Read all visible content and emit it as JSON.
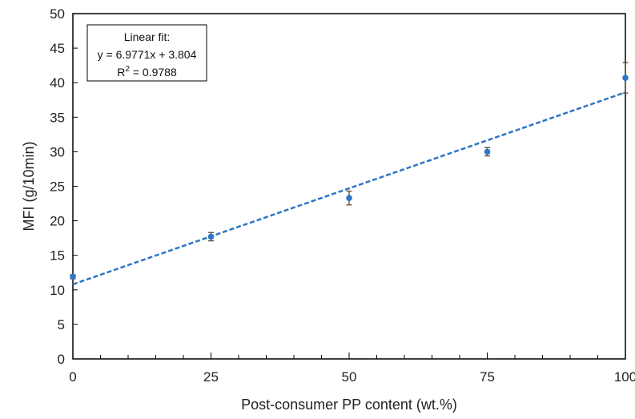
{
  "chart_data": {
    "type": "scatter",
    "xlabel": "Post-consumer PP content (wt.%)",
    "ylabel": "MFI (g/10min)",
    "xlim": [
      0,
      100
    ],
    "ylim": [
      0,
      50
    ],
    "x_ticks": [
      0,
      25,
      50,
      75,
      100
    ],
    "y_ticks": [
      0,
      5,
      10,
      15,
      20,
      25,
      30,
      35,
      40,
      45,
      50
    ],
    "grid": false,
    "series": [
      {
        "x": [
          0,
          25,
          50,
          75,
          100
        ],
        "y": [
          11.9,
          17.7,
          23.3,
          30.0,
          40.7
        ],
        "error": [
          0.3,
          0.6,
          1.0,
          0.6,
          2.2
        ],
        "color": "#2E75C6"
      }
    ],
    "fit_line": {
      "x": [
        0,
        100
      ],
      "y": [
        10.8,
        38.6
      ],
      "color": "#2E75C6",
      "style": "dashed"
    },
    "annotation": {
      "line1": "Linear fit:",
      "line2": "y = 6.9771x + 3.804",
      "line3_prefix": "R",
      "line3_sup": "2",
      "line3_rest": " = 0.9788",
      "placement": "top-left"
    },
    "error_bar_color": "#5a4a3a"
  }
}
